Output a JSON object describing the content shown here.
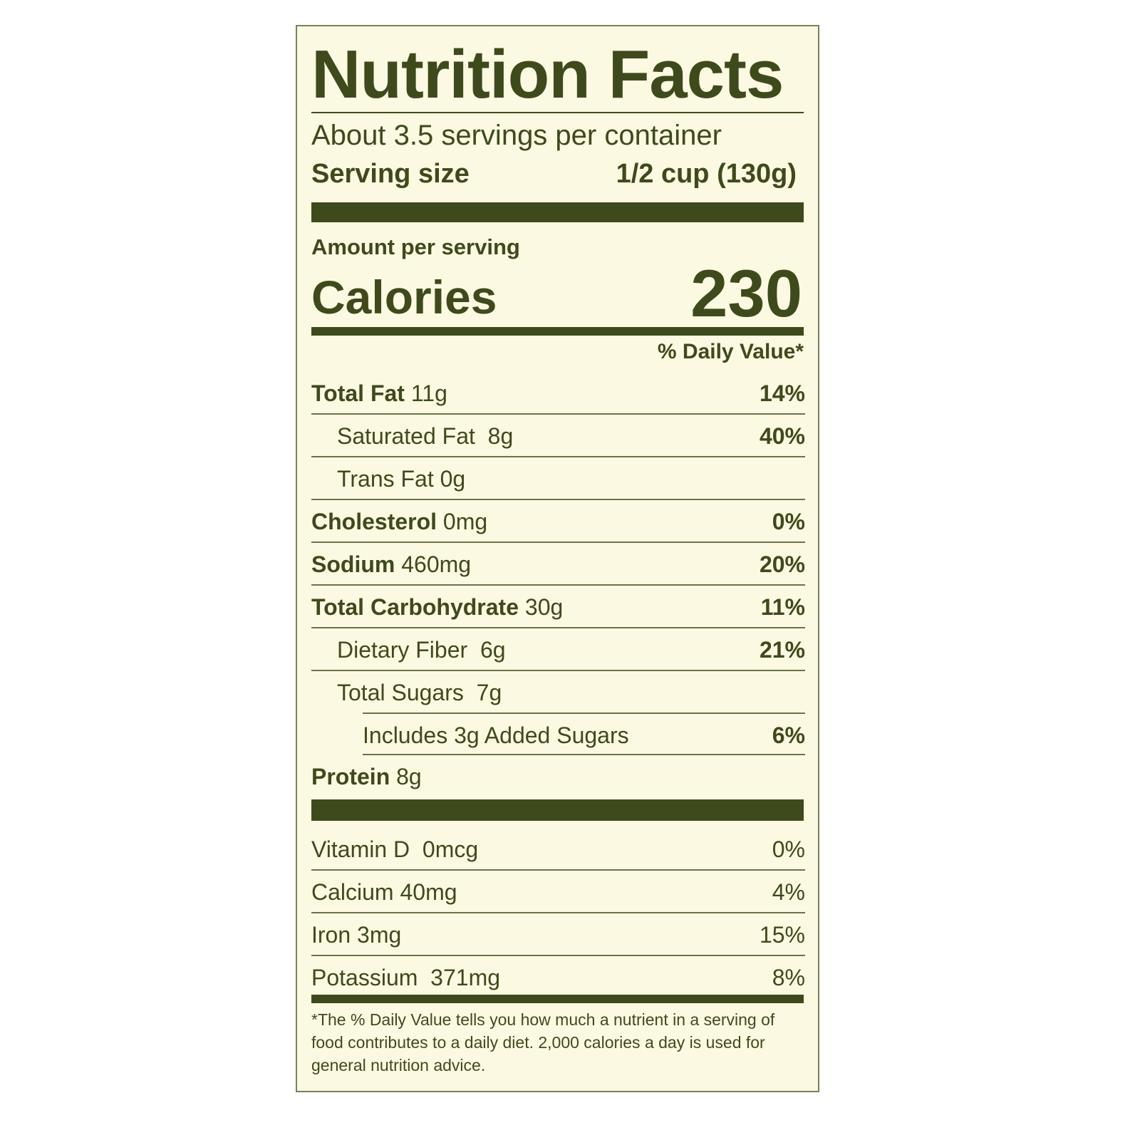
{
  "title": "Nutrition Facts",
  "servings_per_container": "About 3.5 servings per container",
  "serving_size": {
    "label": "Serving size",
    "value": "1/2 cup (130g)"
  },
  "amount_per_serving": "Amount per serving",
  "calories": {
    "label": "Calories",
    "value": "230"
  },
  "daily_value_header": "% Daily Value*",
  "nutrients": [
    {
      "name": "Total Fat",
      "amount": "11g",
      "dv": "14%"
    },
    {
      "name": "Saturated Fat",
      "amount": "8g",
      "dv": "40%"
    },
    {
      "name": "Trans Fat",
      "amount": "0g",
      "dv": ""
    },
    {
      "name": "Cholesterol",
      "amount": "0mg",
      "dv": "0%"
    },
    {
      "name": "Sodium",
      "amount": "460mg",
      "dv": "20%"
    },
    {
      "name": "Total Carbohydrate",
      "amount": "30g",
      "dv": "11%"
    },
    {
      "name": "Dietary Fiber",
      "amount": "6g",
      "dv": "21%"
    },
    {
      "name": "Total Sugars",
      "amount": "7g",
      "dv": ""
    },
    {
      "name": "Includes 3g Added Sugars",
      "amount": "",
      "dv": "6%"
    },
    {
      "name": "Protein",
      "amount": "8g",
      "dv": ""
    }
  ],
  "vitamins": [
    {
      "name": "Vitamin D",
      "amount": "0mcg",
      "dv": "0%"
    },
    {
      "name": "Calcium",
      "amount": "40mg",
      "dv": "4%"
    },
    {
      "name": "Iron",
      "amount": "3mg",
      "dv": "15%"
    },
    {
      "name": "Potassium",
      "amount": "371mg",
      "dv": "8%"
    }
  ],
  "footnote": "*The % Daily Value tells you how much a nutrient in a serving of food contributes to a daily diet. 2,000 calories a day is used for general nutrition advice.",
  "colors": {
    "background": "#fbf9e2",
    "ink": "#3f4a1c"
  }
}
